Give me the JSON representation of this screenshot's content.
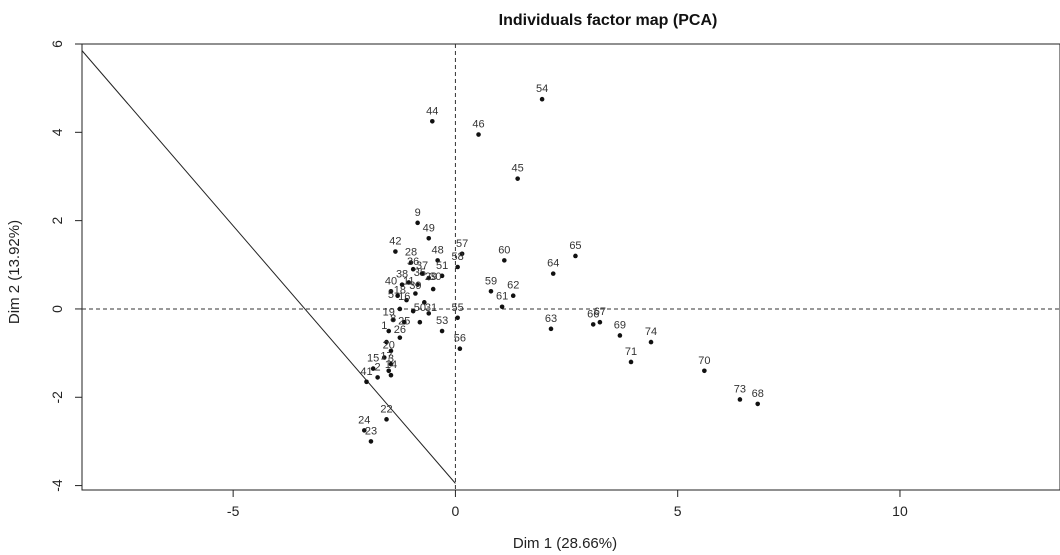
{
  "chart_data": {
    "type": "scatter",
    "title": "Individuals factor map (PCA)",
    "xlabel": "Dim 1 (28.66%)",
    "ylabel": "Dim 2 (13.92%)",
    "xlim": [
      -8.4,
      13.6
    ],
    "ylim": [
      -4.1,
      6.0
    ],
    "xticks": [
      -5,
      0,
      5,
      10
    ],
    "yticks": [
      -4,
      -2,
      0,
      2,
      4,
      6
    ],
    "reference_lines": {
      "vertical": 0,
      "horizontal": 0,
      "style": "dashed"
    },
    "points": [
      {
        "label": "44",
        "x": -0.52,
        "y": 4.25
      },
      {
        "label": "46",
        "x": 0.52,
        "y": 3.95
      },
      {
        "label": "54",
        "x": 1.95,
        "y": 4.75
      },
      {
        "label": "45",
        "x": 1.4,
        "y": 2.95
      },
      {
        "label": "9",
        "x": -0.85,
        "y": 1.95
      },
      {
        "label": "49",
        "x": -0.6,
        "y": 1.6
      },
      {
        "label": "42",
        "x": -1.35,
        "y": 1.3
      },
      {
        "label": "57",
        "x": 0.15,
        "y": 1.25
      },
      {
        "label": "60",
        "x": 1.1,
        "y": 1.1
      },
      {
        "label": "65",
        "x": 2.7,
        "y": 1.2
      },
      {
        "label": "28",
        "x": -1.0,
        "y": 1.05
      },
      {
        "label": "48",
        "x": -0.4,
        "y": 1.1
      },
      {
        "label": "58",
        "x": 0.05,
        "y": 0.95
      },
      {
        "label": "64",
        "x": 2.2,
        "y": 0.8
      },
      {
        "label": "38",
        "x": -1.2,
        "y": 0.55
      },
      {
        "label": "40",
        "x": -1.45,
        "y": 0.4
      },
      {
        "label": "51",
        "x": -0.3,
        "y": 0.75
      },
      {
        "label": "59",
        "x": 0.8,
        "y": 0.4
      },
      {
        "label": "62",
        "x": 1.3,
        "y": 0.3
      },
      {
        "label": "61",
        "x": 1.05,
        "y": 0.05
      },
      {
        "label": "55",
        "x": 0.05,
        "y": -0.2
      },
      {
        "label": "53",
        "x": -0.3,
        "y": -0.5
      },
      {
        "label": "63",
        "x": 2.15,
        "y": -0.45
      },
      {
        "label": "66",
        "x": 3.1,
        "y": -0.35
      },
      {
        "label": "67",
        "x": 3.25,
        "y": -0.3
      },
      {
        "label": "69",
        "x": 3.7,
        "y": -0.6
      },
      {
        "label": "74",
        "x": 4.4,
        "y": -0.75
      },
      {
        "label": "71",
        "x": 3.95,
        "y": -1.2
      },
      {
        "label": "56",
        "x": 0.1,
        "y": -0.9
      },
      {
        "label": "70",
        "x": 5.6,
        "y": -1.4
      },
      {
        "label": "73",
        "x": 6.4,
        "y": -2.05
      },
      {
        "label": "68",
        "x": 6.8,
        "y": -2.15
      },
      {
        "label": "15",
        "x": -1.85,
        "y": -1.35
      },
      {
        "label": "2",
        "x": -1.75,
        "y": -1.55
      },
      {
        "label": "41",
        "x": -2.0,
        "y": -1.65
      },
      {
        "label": "14",
        "x": -1.45,
        "y": -1.5
      },
      {
        "label": "24",
        "x": -2.05,
        "y": -2.75
      },
      {
        "label": "22",
        "x": -1.55,
        "y": -2.5
      },
      {
        "label": "23",
        "x": -1.9,
        "y": -3.0
      },
      {
        "label": "",
        "x": -0.95,
        "y": 0.9
      },
      {
        "label": "",
        "x": -0.75,
        "y": 0.8
      },
      {
        "label": "",
        "x": -0.6,
        "y": 0.7
      },
      {
        "label": "",
        "x": -1.05,
        "y": 0.6
      },
      {
        "label": "",
        "x": -0.85,
        "y": 0.55
      },
      {
        "label": "",
        "x": -0.5,
        "y": 0.45
      },
      {
        "label": "",
        "x": -1.3,
        "y": 0.3
      },
      {
        "label": "",
        "x": -1.1,
        "y": 0.2
      },
      {
        "label": "",
        "x": -0.9,
        "y": 0.35
      },
      {
        "label": "",
        "x": -0.7,
        "y": 0.15
      },
      {
        "label": "",
        "x": -1.25,
        "y": 0.0
      },
      {
        "label": "",
        "x": -0.95,
        "y": -0.05
      },
      {
        "label": "",
        "x": -0.6,
        "y": -0.1
      },
      {
        "label": "",
        "x": -1.4,
        "y": -0.25
      },
      {
        "label": "",
        "x": -1.15,
        "y": -0.3
      },
      {
        "label": "",
        "x": -0.8,
        "y": -0.3
      },
      {
        "label": "",
        "x": -1.5,
        "y": -0.5
      },
      {
        "label": "",
        "x": -1.25,
        "y": -0.65
      },
      {
        "label": "",
        "x": -1.55,
        "y": -0.75
      },
      {
        "label": "",
        "x": -1.45,
        "y": -0.95
      },
      {
        "label": "",
        "x": -1.6,
        "y": -1.1
      },
      {
        "label": "",
        "x": -1.45,
        "y": -1.25
      },
      {
        "label": "",
        "x": -1.5,
        "y": -1.4
      }
    ],
    "cluster_labels": [
      {
        "label": "36",
        "x": -0.95,
        "y": 1.0
      },
      {
        "label": "37",
        "x": -0.75,
        "y": 0.9
      },
      {
        "label": "35",
        "x": -0.8,
        "y": 0.75
      },
      {
        "label": "29",
        "x": -0.55,
        "y": 0.65
      },
      {
        "label": "30",
        "x": -0.45,
        "y": 0.65
      },
      {
        "label": "11",
        "x": -1.05,
        "y": 0.55
      },
      {
        "label": "39",
        "x": -0.9,
        "y": 0.45
      },
      {
        "label": "18",
        "x": -1.25,
        "y": 0.35
      },
      {
        "label": "5",
        "x": -1.45,
        "y": 0.25
      },
      {
        "label": "16",
        "x": -1.15,
        "y": 0.2
      },
      {
        "label": "50",
        "x": -0.8,
        "y": -0.05
      },
      {
        "label": "31",
        "x": -0.55,
        "y": -0.05
      },
      {
        "label": "19",
        "x": -1.5,
        "y": -0.15
      },
      {
        "label": "8",
        "x": -1.4,
        "y": -0.3
      },
      {
        "label": "25",
        "x": -1.15,
        "y": -0.35
      },
      {
        "label": "1",
        "x": -1.6,
        "y": -0.45
      },
      {
        "label": "26",
        "x": -1.25,
        "y": -0.55
      },
      {
        "label": "20",
        "x": -1.5,
        "y": -0.9
      },
      {
        "label": "17",
        "x": -1.55,
        "y": -1.15
      },
      {
        "label": "3",
        "x": -1.45,
        "y": -1.2
      }
    ],
    "overlay_line": {
      "x": [
        -8.4,
        0
      ],
      "y": [
        5.85,
        -3.95
      ]
    },
    "grid": false,
    "legend": "none"
  }
}
